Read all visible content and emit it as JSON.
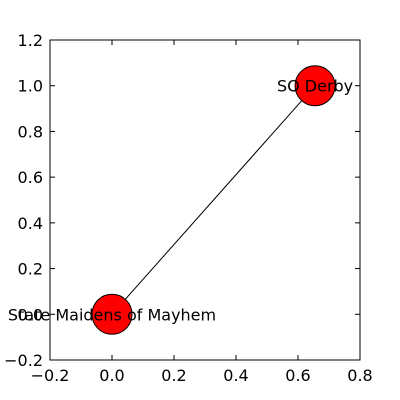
{
  "chart_data": {
    "type": "network",
    "title": "",
    "xlabel": "",
    "ylabel": "",
    "xlim": [
      -0.2,
      0.8
    ],
    "ylim": [
      -0.2,
      1.2
    ],
    "xticks": [
      -0.2,
      0.0,
      0.2,
      0.4,
      0.6,
      0.8
    ],
    "yticks": [
      -0.2,
      0.0,
      0.2,
      0.4,
      0.6,
      0.8,
      1.0,
      1.2
    ],
    "xtick_labels": [
      "−0.2",
      "0.0",
      "0.2",
      "0.4",
      "0.6",
      "0.8"
    ],
    "ytick_labels": [
      "−0.2",
      "0.0",
      "0.2",
      "0.4",
      "0.6",
      "0.8",
      "1.0",
      "1.2"
    ],
    "grid": false,
    "nodes": [
      {
        "label": "State Maidens of Mayhem",
        "x": 0.0,
        "y": 0.0
      },
      {
        "label": "SO Derby",
        "x": 0.655,
        "y": 1.0
      }
    ],
    "edges": [
      {
        "source": 0,
        "target": 1
      }
    ],
    "node_color": "#ff0000",
    "edge_color": "#000000",
    "axis_color": "#000000"
  }
}
